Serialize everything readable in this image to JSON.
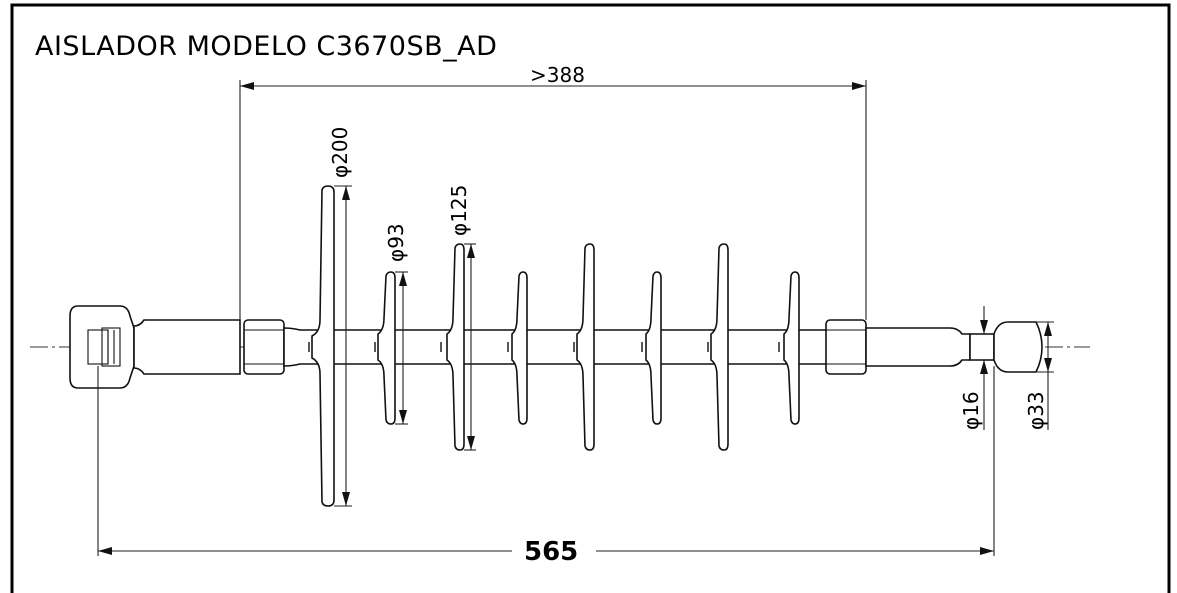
{
  "drawing": {
    "title": "AISLADOR  MODELO C3670SB_AD",
    "dimensions": {
      "arcing_distance": ">388",
      "overall_length": "565",
      "big_shed_diameter": "φ200",
      "small_shed_diameter": "φ93",
      "mid_shed_diameter": "φ125",
      "pin_diameter": "φ16",
      "ball_diameter": "φ33"
    },
    "colors": {
      "frame": "#000000",
      "lines": "#111111",
      "background": "#ffffff"
    }
  }
}
